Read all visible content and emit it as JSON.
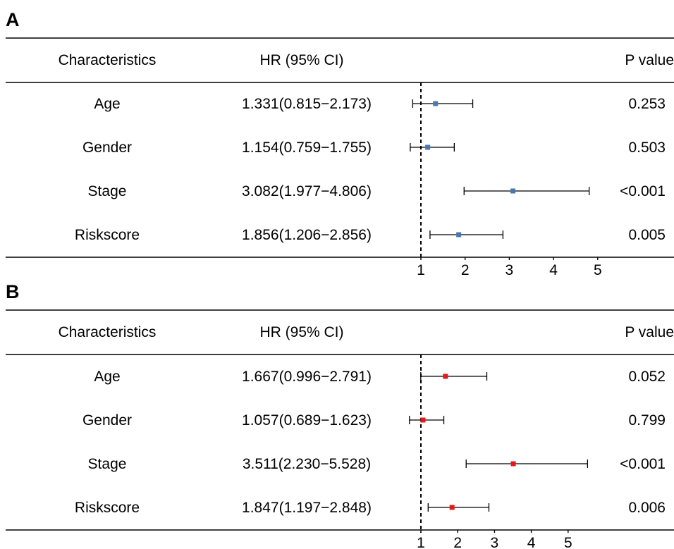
{
  "headers": {
    "characteristics": "Characteristics",
    "hr": "HR (95% CI)",
    "pvalue": "P value"
  },
  "chart_data": [
    {
      "type": "forest",
      "panel": "A",
      "reference_line": 1,
      "marker_color": "#4a78b0",
      "x_ticks": [
        1,
        2,
        3,
        4,
        5
      ],
      "rows": [
        {
          "label": "Age",
          "hr_text": "1.331(0.815−2.173)",
          "p_text": "0.253",
          "hr": 1.331,
          "lo": 0.815,
          "hi": 2.173
        },
        {
          "label": "Gender",
          "hr_text": "1.154(0.759−1.755)",
          "p_text": "0.503",
          "hr": 1.154,
          "lo": 0.759,
          "hi": 1.755
        },
        {
          "label": "Stage",
          "hr_text": "3.082(1.977−4.806)",
          "p_text": "<0.001",
          "hr": 3.082,
          "lo": 1.977,
          "hi": 4.806
        },
        {
          "label": "Riskscore",
          "hr_text": "1.856(1.206−2.856)",
          "p_text": "0.005",
          "hr": 1.856,
          "lo": 1.206,
          "hi": 2.856
        }
      ]
    },
    {
      "type": "forest",
      "panel": "B",
      "reference_line": 1,
      "marker_color": "#e31a1c",
      "x_ticks": [
        1,
        2,
        3,
        4,
        5
      ],
      "rows": [
        {
          "label": "Age",
          "hr_text": "1.667(0.996−2.791)",
          "p_text": "0.052",
          "hr": 1.667,
          "lo": 0.996,
          "hi": 2.791
        },
        {
          "label": "Gender",
          "hr_text": "1.057(0.689−1.623)",
          "p_text": "0.799",
          "hr": 1.057,
          "lo": 0.689,
          "hi": 1.623
        },
        {
          "label": "Stage",
          "hr_text": "3.511(2.230−5.528)",
          "p_text": "<0.001",
          "hr": 3.511,
          "lo": 2.23,
          "hi": 5.528
        },
        {
          "label": "Riskscore",
          "hr_text": "1.847(1.197−2.848)",
          "p_text": "0.006",
          "hr": 1.847,
          "lo": 1.197,
          "hi": 2.848
        }
      ]
    }
  ]
}
